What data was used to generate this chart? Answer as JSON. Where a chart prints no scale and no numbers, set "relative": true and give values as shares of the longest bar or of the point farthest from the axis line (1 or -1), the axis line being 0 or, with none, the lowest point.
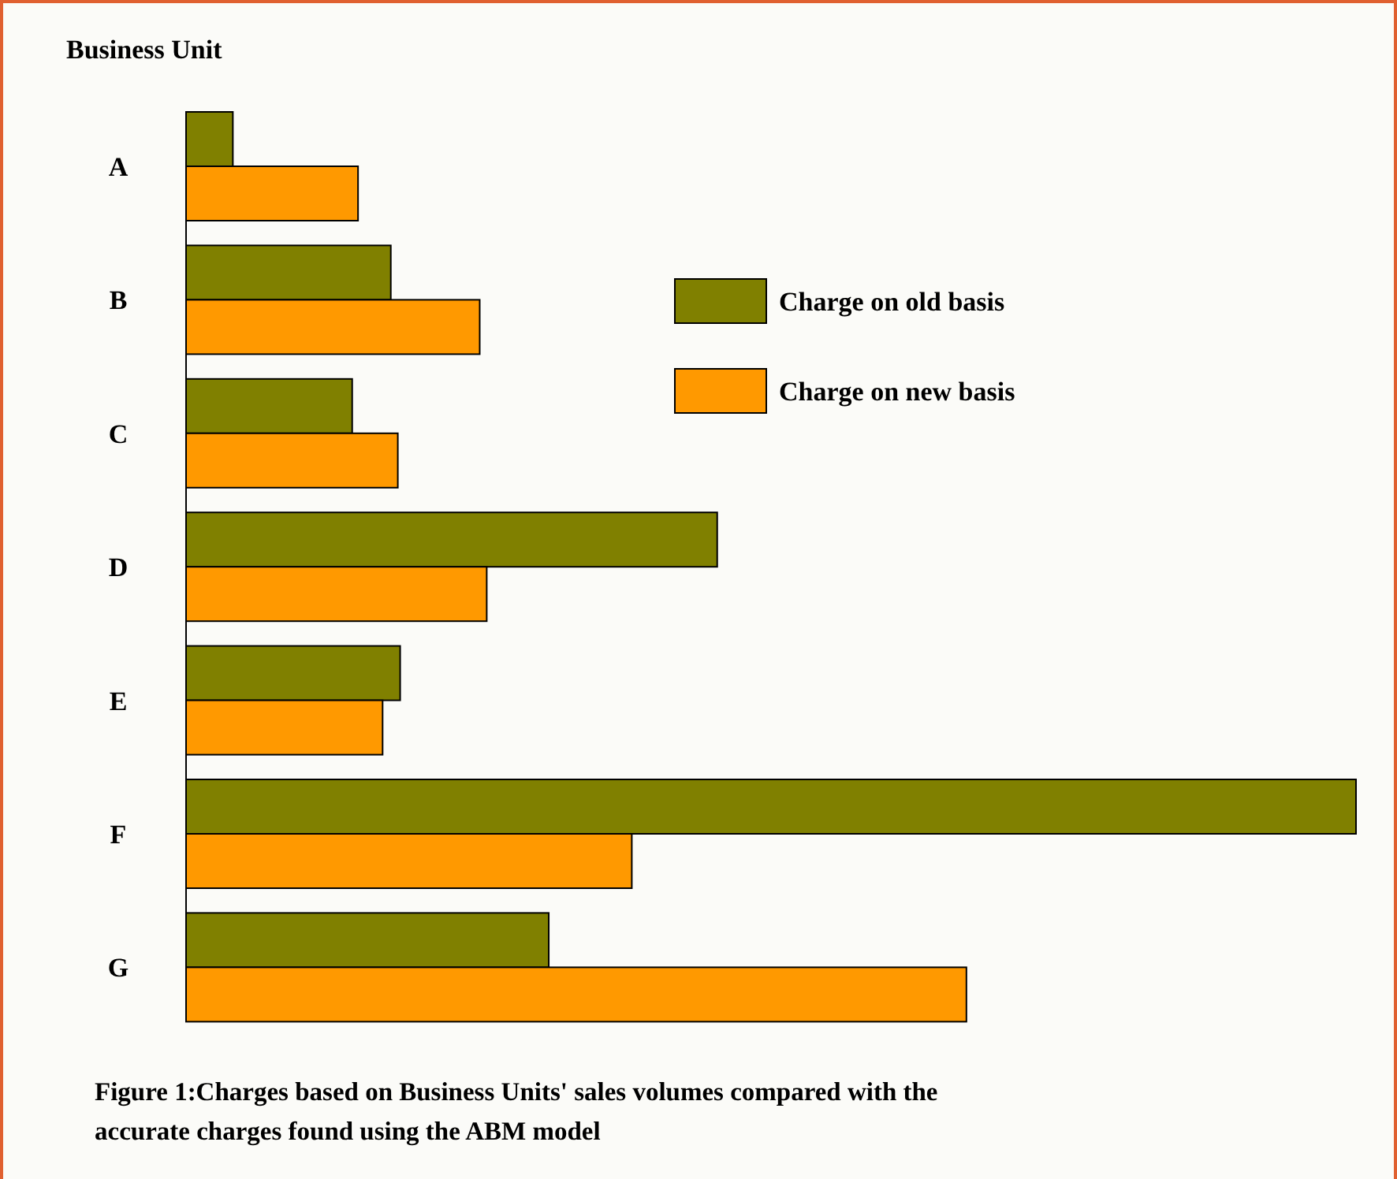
{
  "chart_data": {
    "type": "bar",
    "orientation": "horizontal",
    "relative": true,
    "ylabel": "Business Unit",
    "categories": [
      "A",
      "B",
      "C",
      "D",
      "E",
      "F",
      "G"
    ],
    "series": [
      {
        "name": "Charge on old basis",
        "color": "#808000",
        "values": [
          0.04,
          0.175,
          0.142,
          0.454,
          0.183,
          1,
          0.31
        ]
      },
      {
        "name": "Charge on new basis",
        "color": "#ff9900",
        "values": [
          0.147,
          0.251,
          0.181,
          0.257,
          0.168,
          0.381,
          0.667
        ]
      }
    ],
    "legend": "top right",
    "annotations": [
      "Figure 1:Charges based on Business Units' sales volumes compared with the accurate charges found using the ABM model"
    ]
  }
}
